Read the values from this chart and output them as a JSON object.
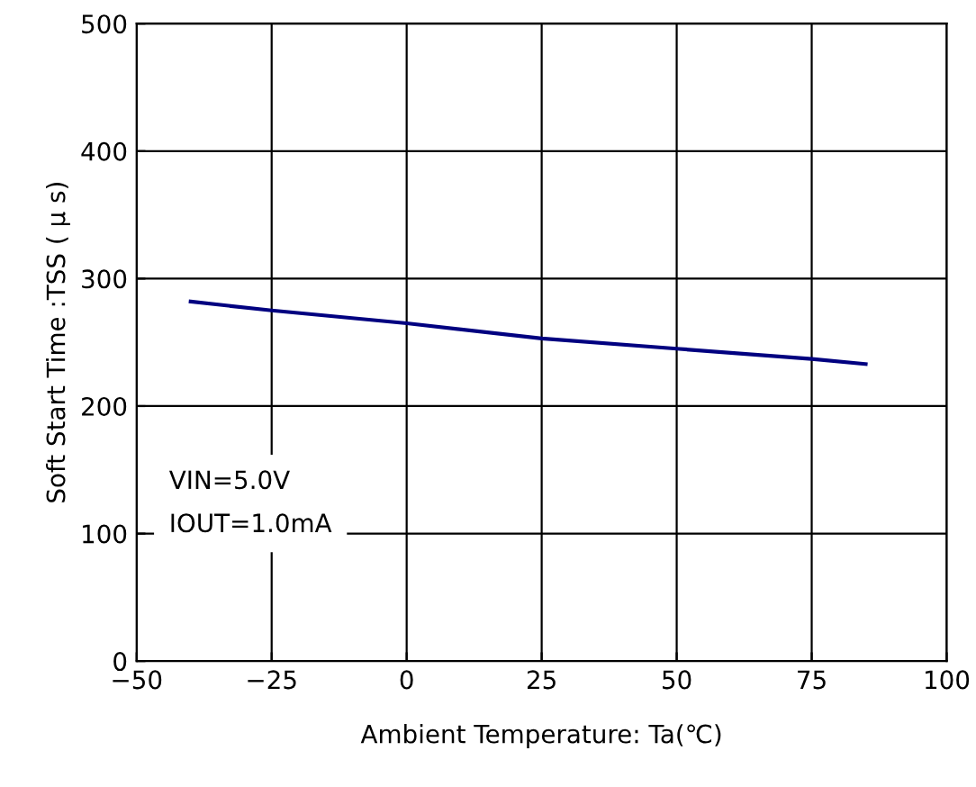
{
  "chart_data": {
    "type": "line",
    "xlabel": "Ambient Temperature: Ta(℃)",
    "ylabel": "Soft Start Time :TSS ( μ s)",
    "x": [
      -40,
      -25,
      0,
      25,
      50,
      75,
      85
    ],
    "series": [
      {
        "color": "#000080",
        "values": [
          282,
          275,
          265,
          253,
          245,
          237,
          233
        ]
      }
    ],
    "xlim": [
      -50,
      100
    ],
    "xticks": [
      {
        "value": -50,
        "label": "−50"
      },
      {
        "value": -25,
        "label": "−25"
      },
      0,
      25,
      50,
      75,
      100
    ],
    "ylim": [
      0,
      500
    ],
    "yticks": [
      0,
      100,
      200,
      300,
      400,
      500
    ],
    "grid": true,
    "annotations": [
      "VIN=5.0V\nIOUT=1.0mA"
    ]
  }
}
